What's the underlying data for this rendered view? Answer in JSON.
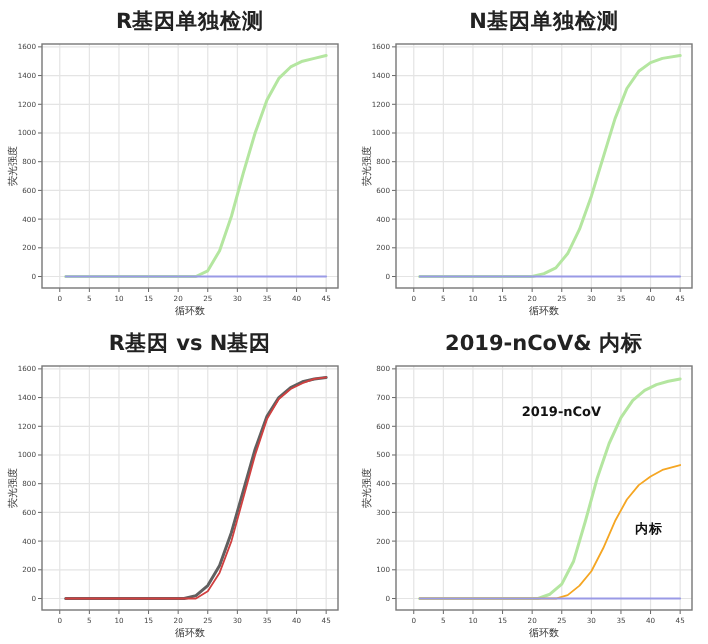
{
  "chart_data": [
    {
      "type": "line",
      "title": "R基因单独检测",
      "xlabel": "循环数",
      "ylabel": "荧光强度",
      "xlim": [
        -3,
        47
      ],
      "ylim": [
        -80,
        1620
      ],
      "xticks": [
        0,
        5,
        10,
        15,
        20,
        25,
        30,
        35,
        40,
        45
      ],
      "yticks": [
        0,
        200,
        400,
        600,
        800,
        1000,
        1200,
        1400,
        1600
      ],
      "grid": true,
      "series": [
        {
          "color": "#b4e6a0",
          "x": [
            1,
            23,
            25,
            27,
            29,
            31,
            33,
            35,
            37,
            39,
            41,
            43,
            45
          ],
          "values": [
            0,
            0,
            40,
            180,
            420,
            720,
            1000,
            1230,
            1380,
            1460,
            1500,
            1520,
            1540
          ]
        },
        {
          "color": "#9a9ae6",
          "x": [
            1,
            45
          ],
          "values": [
            0,
            0
          ]
        }
      ]
    },
    {
      "type": "line",
      "title": "N基因单独检测",
      "xlabel": "循环数",
      "ylabel": "荧光强度",
      "xlim": [
        -3,
        47
      ],
      "ylim": [
        -80,
        1620
      ],
      "xticks": [
        0,
        5,
        10,
        15,
        20,
        25,
        30,
        35,
        40,
        45
      ],
      "yticks": [
        0,
        200,
        400,
        600,
        800,
        1000,
        1200,
        1400,
        1600
      ],
      "grid": true,
      "series": [
        {
          "color": "#b4e6a0",
          "x": [
            1,
            20,
            22,
            24,
            26,
            28,
            30,
            32,
            34,
            36,
            38,
            40,
            42,
            45
          ],
          "values": [
            0,
            0,
            20,
            60,
            160,
            330,
            560,
            830,
            1100,
            1310,
            1430,
            1490,
            1520,
            1540
          ]
        },
        {
          "color": "#9a9ae6",
          "x": [
            1,
            45
          ],
          "values": [
            0,
            0
          ]
        }
      ]
    },
    {
      "type": "line",
      "title": "R基因 vs N基因",
      "xlabel": "循环数",
      "ylabel": "荧光强度",
      "xlim": [
        -3,
        47
      ],
      "ylim": [
        -80,
        1620
      ],
      "xticks": [
        0,
        5,
        10,
        15,
        20,
        25,
        30,
        35,
        40,
        45
      ],
      "yticks": [
        0,
        200,
        400,
        600,
        800,
        1000,
        1200,
        1400,
        1600
      ],
      "grid": true,
      "series": [
        {
          "color": "#606060",
          "x": [
            1,
            21,
            23,
            25,
            27,
            29,
            31,
            33,
            35,
            37,
            39,
            41,
            43,
            45
          ],
          "values": [
            0,
            0,
            20,
            90,
            230,
            460,
            750,
            1040,
            1270,
            1400,
            1470,
            1510,
            1530,
            1540
          ]
        },
        {
          "color": "#d04040",
          "x": [
            1,
            23,
            25,
            27,
            29,
            31,
            33,
            35,
            37,
            39,
            41,
            43,
            45
          ],
          "values": [
            0,
            0,
            50,
            180,
            400,
            700,
            1000,
            1250,
            1390,
            1460,
            1500,
            1530,
            1540
          ]
        }
      ]
    },
    {
      "type": "line",
      "title": "2019-nCoV& 内标",
      "xlabel": "循环数",
      "ylabel": "荧光强度",
      "xlim": [
        -3,
        47
      ],
      "ylim": [
        -40,
        810
      ],
      "xticks": [
        0,
        5,
        10,
        15,
        20,
        25,
        30,
        35,
        40,
        45
      ],
      "yticks": [
        0,
        100,
        200,
        300,
        400,
        500,
        600,
        700,
        800
      ],
      "grid": true,
      "series": [
        {
          "name": "2019-nCoV",
          "color": "#b4e6a0",
          "x": [
            1,
            21,
            23,
            25,
            27,
            29,
            31,
            33,
            35,
            37,
            39,
            41,
            43,
            45
          ],
          "values": [
            0,
            0,
            15,
            50,
            130,
            270,
            420,
            540,
            630,
            690,
            725,
            745,
            757,
            765
          ]
        },
        {
          "name": "内标",
          "color": "#f5a623",
          "x": [
            1,
            24,
            26,
            28,
            30,
            32,
            34,
            36,
            38,
            40,
            42,
            45
          ],
          "values": [
            0,
            0,
            12,
            45,
            95,
            175,
            270,
            345,
            395,
            425,
            448,
            465
          ]
        },
        {
          "color": "#9a9ae6",
          "x": [
            1,
            45
          ],
          "values": [
            0,
            0
          ]
        }
      ]
    }
  ]
}
